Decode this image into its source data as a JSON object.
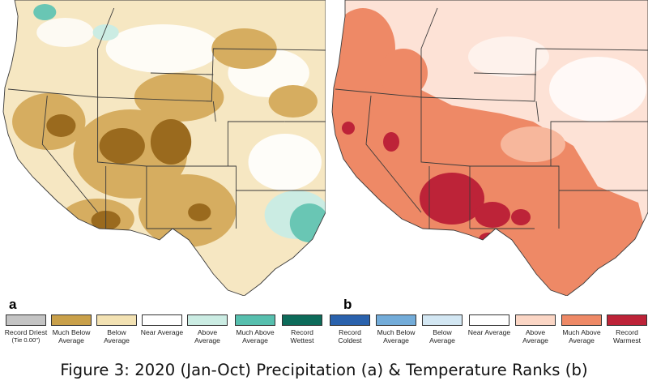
{
  "panels": {
    "a": {
      "letter": "a"
    },
    "b": {
      "letter": "b"
    }
  },
  "legend": {
    "precipitation": [
      {
        "label": "Record Driest",
        "sub": "(Tie 0.00\")",
        "color": "#c4c4c4"
      },
      {
        "label": "Much Below Average",
        "color": "#c9a04a"
      },
      {
        "label": "Below Average",
        "color": "#f3e2b3"
      },
      {
        "label": "Near Average",
        "color": "#ffffff"
      },
      {
        "label": "Above Average",
        "color": "#cbece3"
      },
      {
        "label": "Much Above Average",
        "color": "#57bfae"
      },
      {
        "label": "Record Wettest",
        "color": "#0d6b5a"
      }
    ],
    "temperature": [
      {
        "label": "Record Coldest",
        "color": "#2a62ad"
      },
      {
        "label": "Much Below Average",
        "color": "#73acd9"
      },
      {
        "label": "Below Average",
        "color": "#d3e7f3"
      },
      {
        "label": "Near Average",
        "color": "#ffffff"
      },
      {
        "label": "Above Average",
        "color": "#fbd6c5"
      },
      {
        "label": "Much Above Average",
        "color": "#ee8966"
      },
      {
        "label": "Record Warmest",
        "color": "#bd2338"
      }
    ]
  },
  "colors": {
    "precip_base": "#f6e7c2",
    "precip_brown": "#9a6a1e",
    "precip_tan": "#d6ad60",
    "precip_teal": "#69c6b4",
    "temp_base": "#fde2d6",
    "temp_orange": "#ee8966",
    "temp_red": "#bd2338",
    "temp_mid": "#f7b79c"
  },
  "caption": "Figure 3: 2020 (Jan-Oct) Precipitation (a) & Temperature Ranks (b)"
}
